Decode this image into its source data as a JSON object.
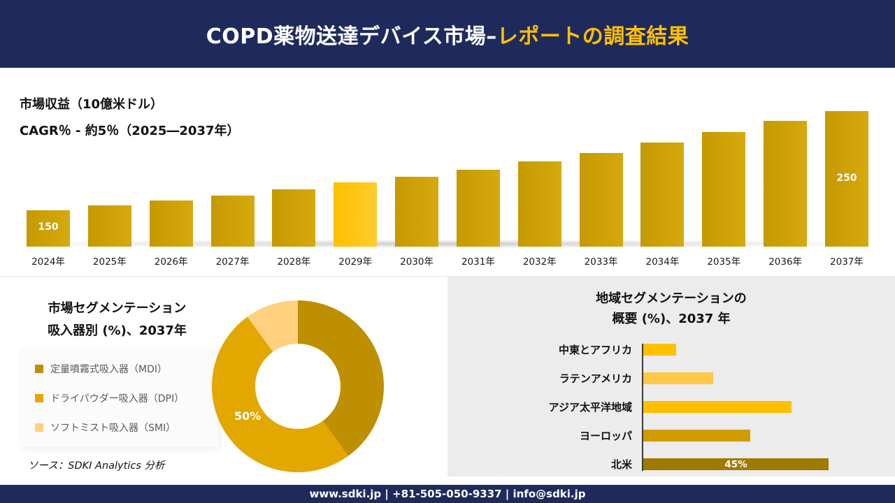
{
  "colors": {
    "navy": "#1F2A5C",
    "accent_gold": "#FFC000",
    "bar_gold": "#C99A00",
    "highlight_gold": "#FFC000"
  },
  "header": {
    "title_main": "COPD薬物送達デバイス市場–",
    "title_accent": "レポートの調査結果"
  },
  "revenue": {
    "title": "市場収益（10億米ドル）",
    "cagr": "CAGR％ - 約5％（2025―2037年）"
  },
  "segmentation": {
    "title_line1": "市場セグメンテーション",
    "title_line2": "吸入器別 (%)、2037年",
    "source": "ソース：SDKI Analytics 分析"
  },
  "region": {
    "title_line1": "地域セグメンテーションの",
    "title_line2": "概要 (%)、2037 年"
  },
  "footer": {
    "text": "www.sdki.jp | +81-505-050-9337 | info@sdki.jp"
  },
  "chart_data": [
    {
      "type": "bar",
      "title": "市場収益（10億米ドル）",
      "subtitle": "CAGR％ - 約5％（2025―2037年）",
      "categories": [
        "2024年",
        "2025年",
        "2026年",
        "2027年",
        "2028年",
        "2029年",
        "2030年",
        "2031年",
        "2032年",
        "2033年",
        "2034年",
        "2035年",
        "2036年",
        "2037年"
      ],
      "values": [
        150,
        155,
        160,
        165,
        171,
        178,
        184,
        191,
        199,
        208,
        218,
        229,
        240,
        250
      ],
      "first_value_label": "150",
      "last_value_label": "250",
      "highlight_index": 5,
      "ylabel": "10億米ドル",
      "legend_position": "none",
      "grid": false
    },
    {
      "type": "pie",
      "donut": true,
      "title": "市場セグメンテーション 吸入器別 (%)、2037年",
      "labels": [
        "定量噴霧式吸入器（MDI）",
        "ドライパウダー吸入器（DPI）",
        "ソフトミスト吸入器（SMI）"
      ],
      "values": [
        40,
        50,
        10
      ],
      "colors": [
        "#BE8F00",
        "#E2A700",
        "#FFD07E"
      ],
      "shown_label": "50%",
      "shown_label_slice": "ドライパウダー吸入器（DPI）",
      "legend_position": "left"
    },
    {
      "type": "bar",
      "orientation": "horizontal",
      "title": "地域セグメンテーションの概要 (%)、2037 年",
      "categories": [
        "中東とアフリカ",
        "ラテンアメリカ",
        "アジア太平洋地域",
        "ヨーロッパ",
        "北米"
      ],
      "values": [
        8,
        17,
        36,
        26,
        45
      ],
      "colors": [
        "#FFC000",
        "#FFC847",
        "#FFC000",
        "#D09C00",
        "#9E7B00"
      ],
      "value_labels": {
        "4": "45%"
      },
      "xlim": [
        0,
        45
      ],
      "grid": false
    }
  ]
}
